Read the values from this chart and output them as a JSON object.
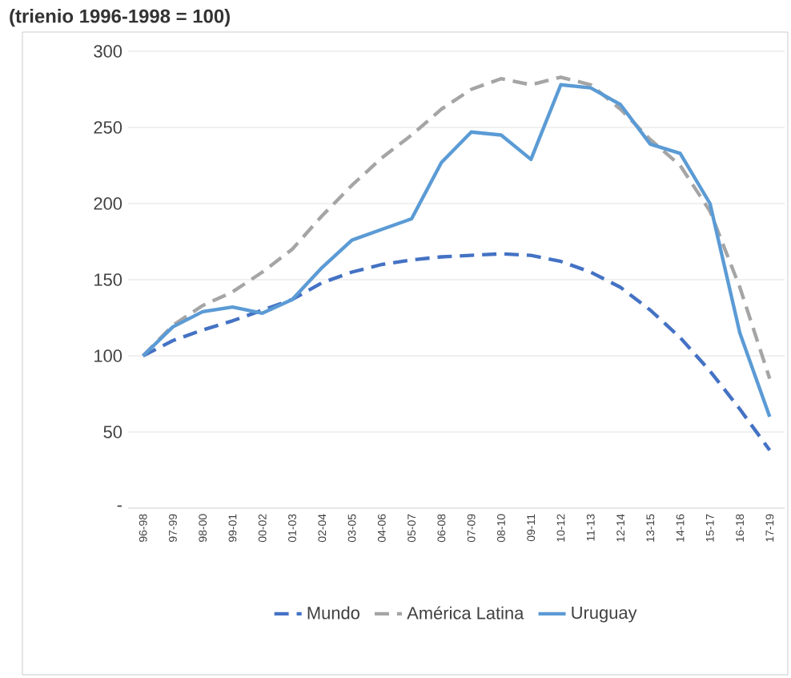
{
  "chart_data": {
    "type": "line",
    "title": "(trienio 1996-1998 = 100)",
    "categories": [
      "96-98",
      "97-99",
      "98-00",
      "99-01",
      "00-02",
      "01-03",
      "02-04",
      "03-05",
      "04-06",
      "05-07",
      "06-08",
      "07-09",
      "08-10",
      "09-11",
      "10-12",
      "11-13",
      "12-14",
      "13-15",
      "14-16",
      "15-17",
      "16-18",
      "17-19"
    ],
    "series": [
      {
        "name": "Mundo",
        "color": "#4472c4",
        "line_style": "dashed",
        "values": [
          100,
          110,
          117,
          123,
          130,
          137,
          148,
          155,
          160,
          163,
          165,
          166,
          167,
          166,
          162,
          155,
          145,
          130,
          112,
          90,
          65,
          38
        ]
      },
      {
        "name": "América Latina",
        "color": "#a5a5a5",
        "line_style": "dashed",
        "values": [
          100,
          120,
          133,
          142,
          155,
          170,
          192,
          212,
          230,
          245,
          262,
          275,
          282,
          278,
          283,
          278,
          262,
          242,
          225,
          195,
          145,
          85
        ]
      },
      {
        "name": "Uruguay",
        "color": "#5b9bd5",
        "line_style": "solid",
        "values": [
          100,
          119,
          129,
          132,
          128,
          137,
          158,
          176,
          183,
          190,
          227,
          247,
          245,
          229,
          278,
          276,
          265,
          239,
          233,
          200,
          115,
          60
        ]
      }
    ],
    "ylim": [
      0,
      300
    ],
    "yticks": [
      {
        "value": 0,
        "label": "-"
      },
      50,
      100,
      150,
      200,
      250,
      300
    ],
    "grid": "y",
    "legend": "bottom",
    "marker": "none"
  }
}
